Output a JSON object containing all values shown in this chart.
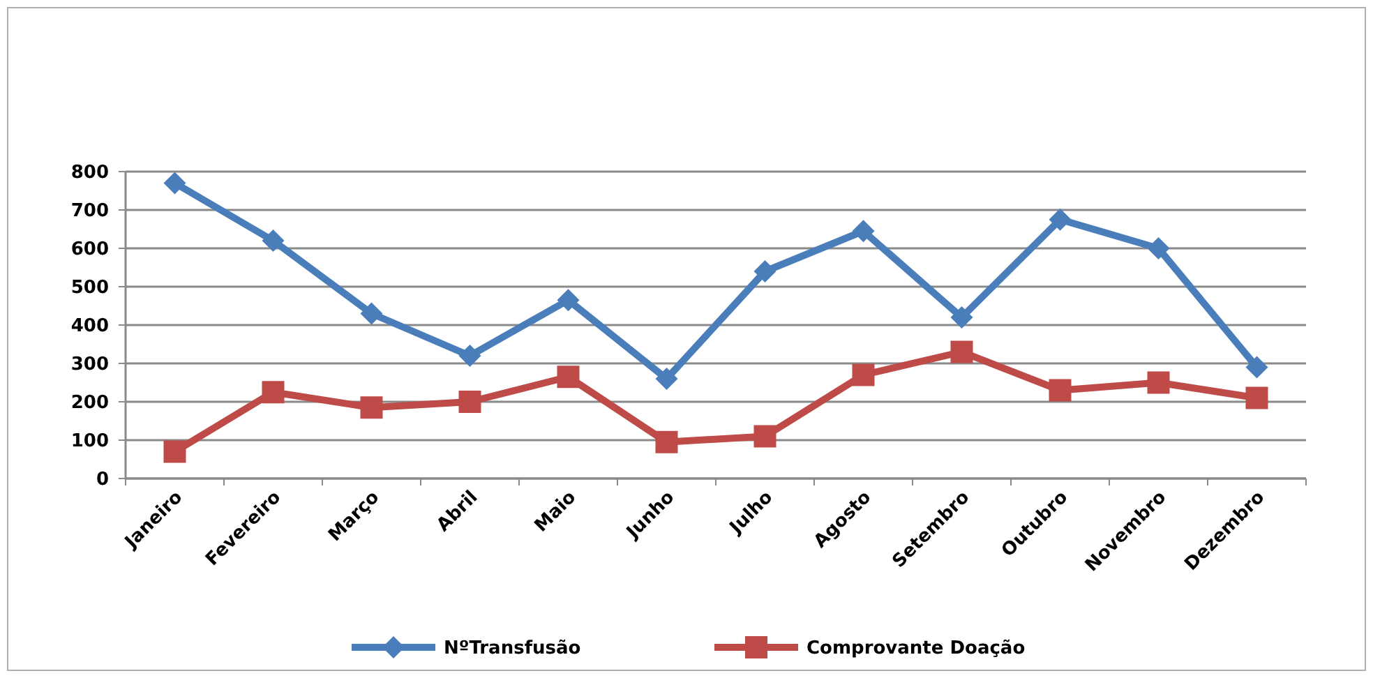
{
  "chart_data": {
    "type": "line",
    "categories": [
      "Janeiro",
      "Fevereiro",
      "Março",
      "Abril",
      "Maio",
      "Junho",
      "Julho",
      "Agosto",
      "Setembro",
      "Outubro",
      "Novembro",
      "Dezembro"
    ],
    "series": [
      {
        "name": "NºTransfusão",
        "color": "#4a7ebb",
        "marker": "diamond",
        "values": [
          770,
          620,
          430,
          320,
          465,
          260,
          540,
          645,
          420,
          675,
          600,
          290
        ]
      },
      {
        "name": "Comprovante Doação",
        "color": "#be4b48",
        "marker": "square",
        "values": [
          70,
          225,
          185,
          200,
          265,
          95,
          110,
          270,
          330,
          230,
          250,
          210
        ]
      }
    ],
    "ylim": [
      0,
      800
    ],
    "yticks": [
      0,
      100,
      200,
      300,
      400,
      500,
      600,
      700,
      800
    ],
    "grid": "y",
    "legend": "bottom",
    "line_style": "solid"
  }
}
